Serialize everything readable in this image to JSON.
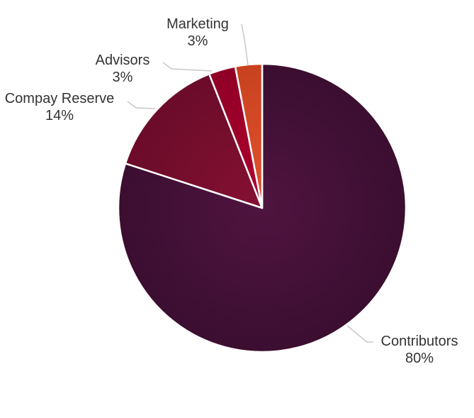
{
  "chart_data": {
    "type": "pie",
    "title": "",
    "slices": [
      {
        "name": "Contributors",
        "value": 80,
        "percent_label": "80%",
        "color": "#4f1440",
        "gradient_edge": "#3b0e30"
      },
      {
        "name": "Compay Reserve",
        "value": 14,
        "percent_label": "14%",
        "color": "#851033",
        "gradient_edge": "#6b0c2a"
      },
      {
        "name": "Advisors",
        "value": 3,
        "percent_label": "3%",
        "color": "#b0002e",
        "gradient_edge": "#8f0026"
      },
      {
        "name": "Marketing",
        "value": 3,
        "percent_label": "3%",
        "color": "#e2532f",
        "gradient_edge": "#c8421f"
      }
    ],
    "start_angle_deg": 0,
    "direction": "clockwise",
    "slice_border_color": "#ffffff",
    "leader_line_color": "#c8c8c8"
  }
}
